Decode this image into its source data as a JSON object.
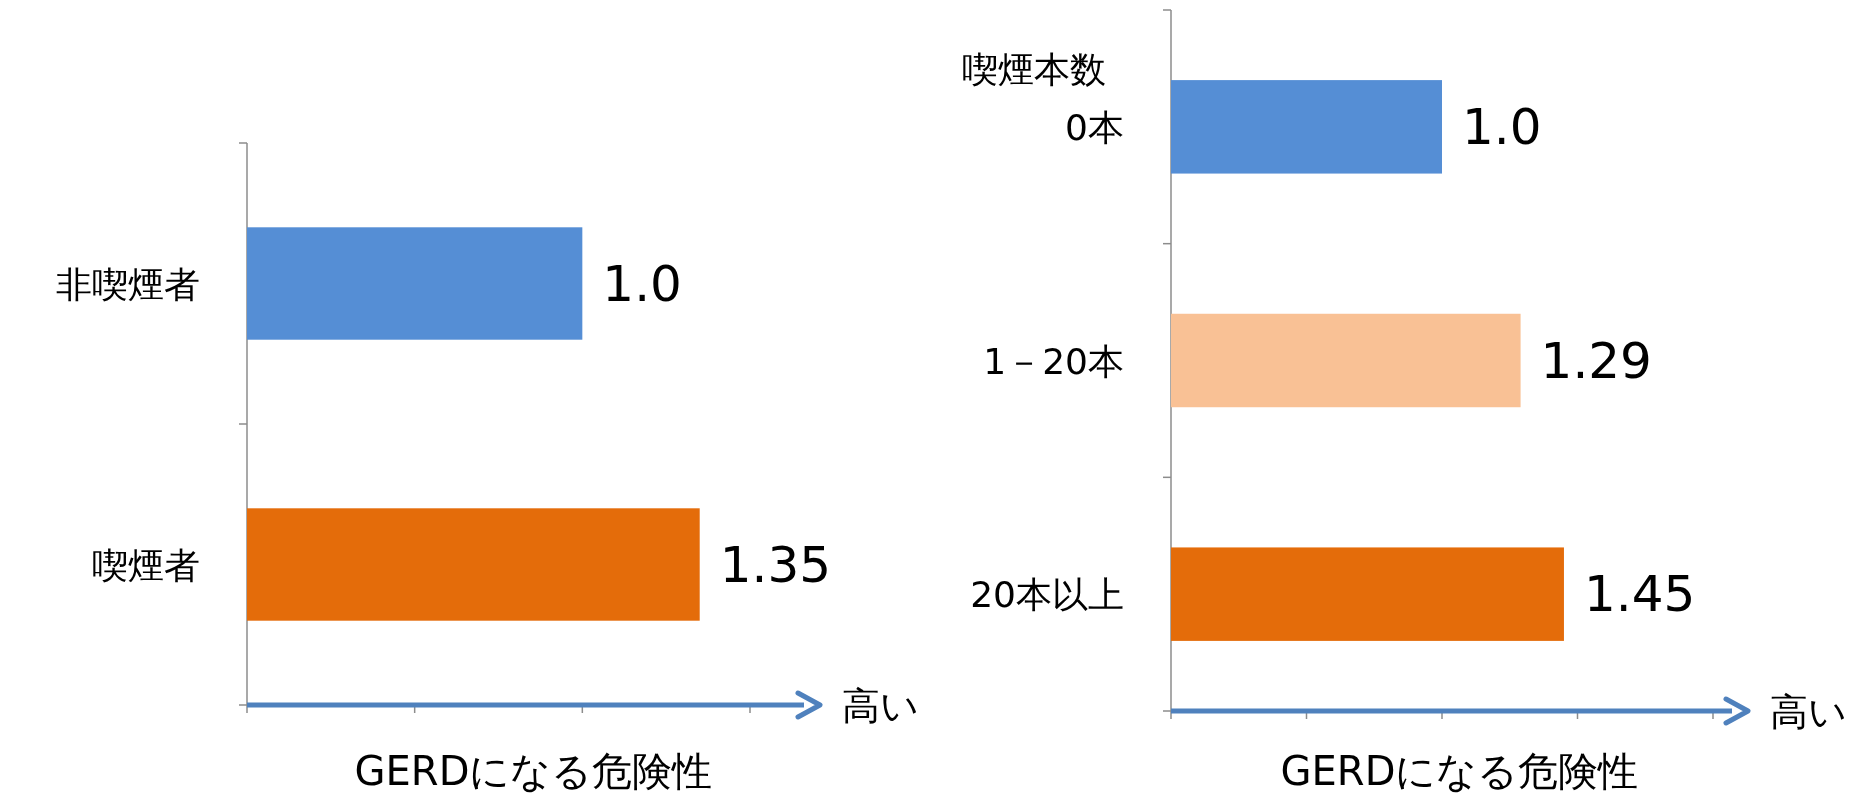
{
  "chart_data": [
    {
      "type": "bar",
      "orientation": "horizontal",
      "categories": [
        "非喫煙者",
        "喫煙者"
      ],
      "values": [
        1.0,
        1.35
      ],
      "colors": [
        "#558ed5",
        "#e46c0a"
      ],
      "value_labels": [
        "1.0",
        "1.35"
      ],
      "xlabel": "GERDになる危険性",
      "xticks": [
        {
          "value": 0,
          "label": null
        },
        {
          "value": 0.5,
          "label": null
        },
        {
          "value": 1,
          "label": null
        },
        {
          "value": 1.5,
          "label": null
        }
      ],
      "tick_labels": "y",
      "annotations": [
        "高い"
      ]
    },
    {
      "type": "bar",
      "orientation": "horizontal",
      "categories": [
        "0本",
        "1－20本",
        "20本以上"
      ],
      "values": [
        1.0,
        1.29,
        1.45
      ],
      "colors": [
        "#558ed5",
        "#f9c195",
        "#e46c0a"
      ],
      "value_labels": [
        "1.0",
        "1.29",
        "1.45"
      ],
      "ylabel": "喫煙本数",
      "xlabel": "GERDになる危険性",
      "xticks": [
        {
          "value": 0,
          "label": null
        },
        {
          "value": 0.5,
          "label": null
        },
        {
          "value": 1,
          "label": null
        },
        {
          "value": 1.5,
          "label": null
        },
        {
          "value": 2,
          "label": null
        }
      ],
      "tick_labels": "y",
      "annotations": [
        "高い"
      ]
    }
  ]
}
